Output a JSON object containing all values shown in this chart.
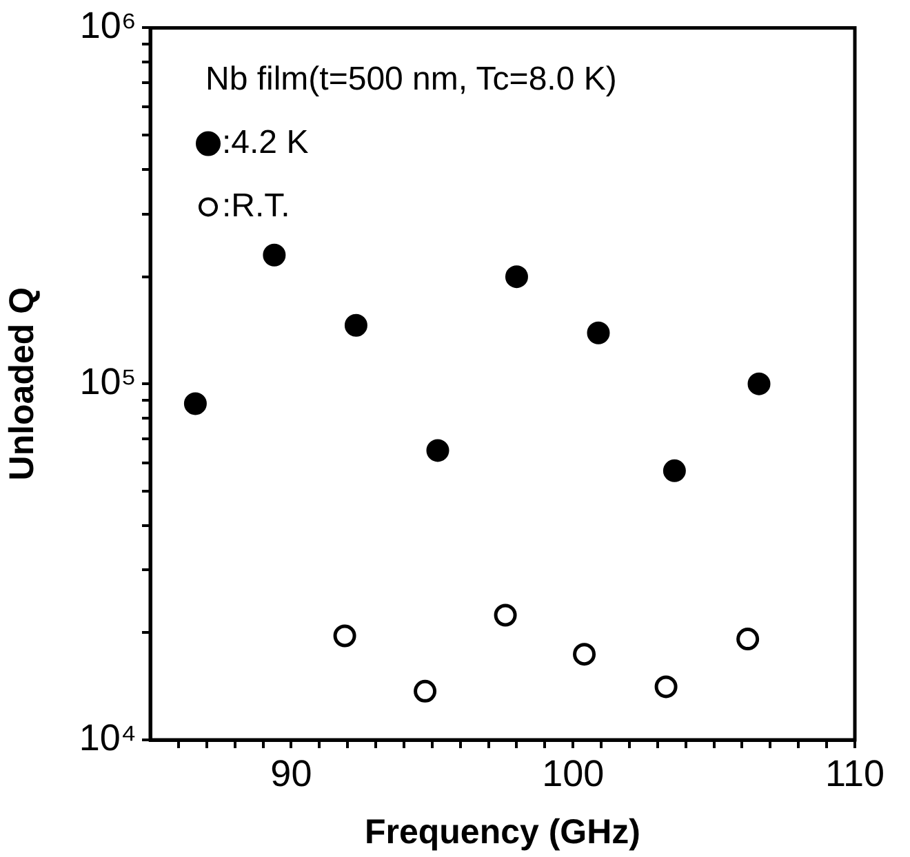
{
  "chart_data": {
    "type": "scatter",
    "title": "Nb film(t=500 nm, Tc=8.0 K)",
    "xlabel": "Frequency (GHz)",
    "ylabel": "Unloaded Q",
    "log": "y",
    "grid": false,
    "legend": "top left",
    "marker": "circle",
    "xlim": [
      85,
      110
    ],
    "ylim": [
      10000,
      1000000
    ],
    "xticks": [
      {
        "value": 86,
        "label": null
      },
      {
        "value": 87,
        "label": null
      },
      {
        "value": 88,
        "label": null
      },
      {
        "value": 89,
        "label": null
      },
      90,
      {
        "value": 91,
        "label": null
      },
      {
        "value": 92,
        "label": null
      },
      {
        "value": 93,
        "label": null
      },
      {
        "value": 94,
        "label": null
      },
      {
        "value": 95,
        "label": null
      },
      {
        "value": 96,
        "label": null
      },
      {
        "value": 97,
        "label": null
      },
      {
        "value": 98,
        "label": null
      },
      {
        "value": 99,
        "label": null
      },
      100,
      {
        "value": 101,
        "label": null
      },
      {
        "value": 102,
        "label": null
      },
      {
        "value": 103,
        "label": null
      },
      {
        "value": 104,
        "label": null
      },
      {
        "value": 105,
        "label": null
      },
      {
        "value": 106,
        "label": null
      },
      {
        "value": 107,
        "label": null
      },
      {
        "value": 108,
        "label": null
      },
      {
        "value": 109,
        "label": null
      },
      110
    ],
    "yticks": [
      {
        "value": 10000,
        "label": "10⁴"
      },
      {
        "value": 20000,
        "label": null
      },
      {
        "value": 30000,
        "label": null
      },
      {
        "value": 40000,
        "label": null
      },
      {
        "value": 50000,
        "label": null
      },
      {
        "value": 60000,
        "label": null
      },
      {
        "value": 70000,
        "label": null
      },
      {
        "value": 80000,
        "label": null
      },
      {
        "value": 90000,
        "label": null
      },
      {
        "value": 100000,
        "label": "10⁵"
      },
      {
        "value": 200000,
        "label": null
      },
      {
        "value": 300000,
        "label": null
      },
      {
        "value": 400000,
        "label": null
      },
      {
        "value": 500000,
        "label": null
      },
      {
        "value": 600000,
        "label": null
      },
      {
        "value": 700000,
        "label": null
      },
      {
        "value": 800000,
        "label": null
      },
      {
        "value": 900000,
        "label": null
      },
      {
        "value": 1000000,
        "label": "10⁶"
      }
    ],
    "series": [
      {
        "name": ":4.2 K",
        "color": "#000000",
        "x": [
          86.6,
          89.4,
          92.3,
          95.2,
          98.0,
          100.9,
          103.6,
          106.6
        ],
        "values": [
          88000,
          230000,
          146000,
          65000,
          200000,
          139000,
          57000,
          100000
        ]
      },
      {
        "name": ":R.T.",
        "color": "#ffffff",
        "x": [
          91.9,
          94.75,
          97.6,
          100.4,
          103.3,
          106.2
        ],
        "values": [
          19600,
          13700,
          22400,
          17400,
          14100,
          19200
        ]
      }
    ]
  }
}
